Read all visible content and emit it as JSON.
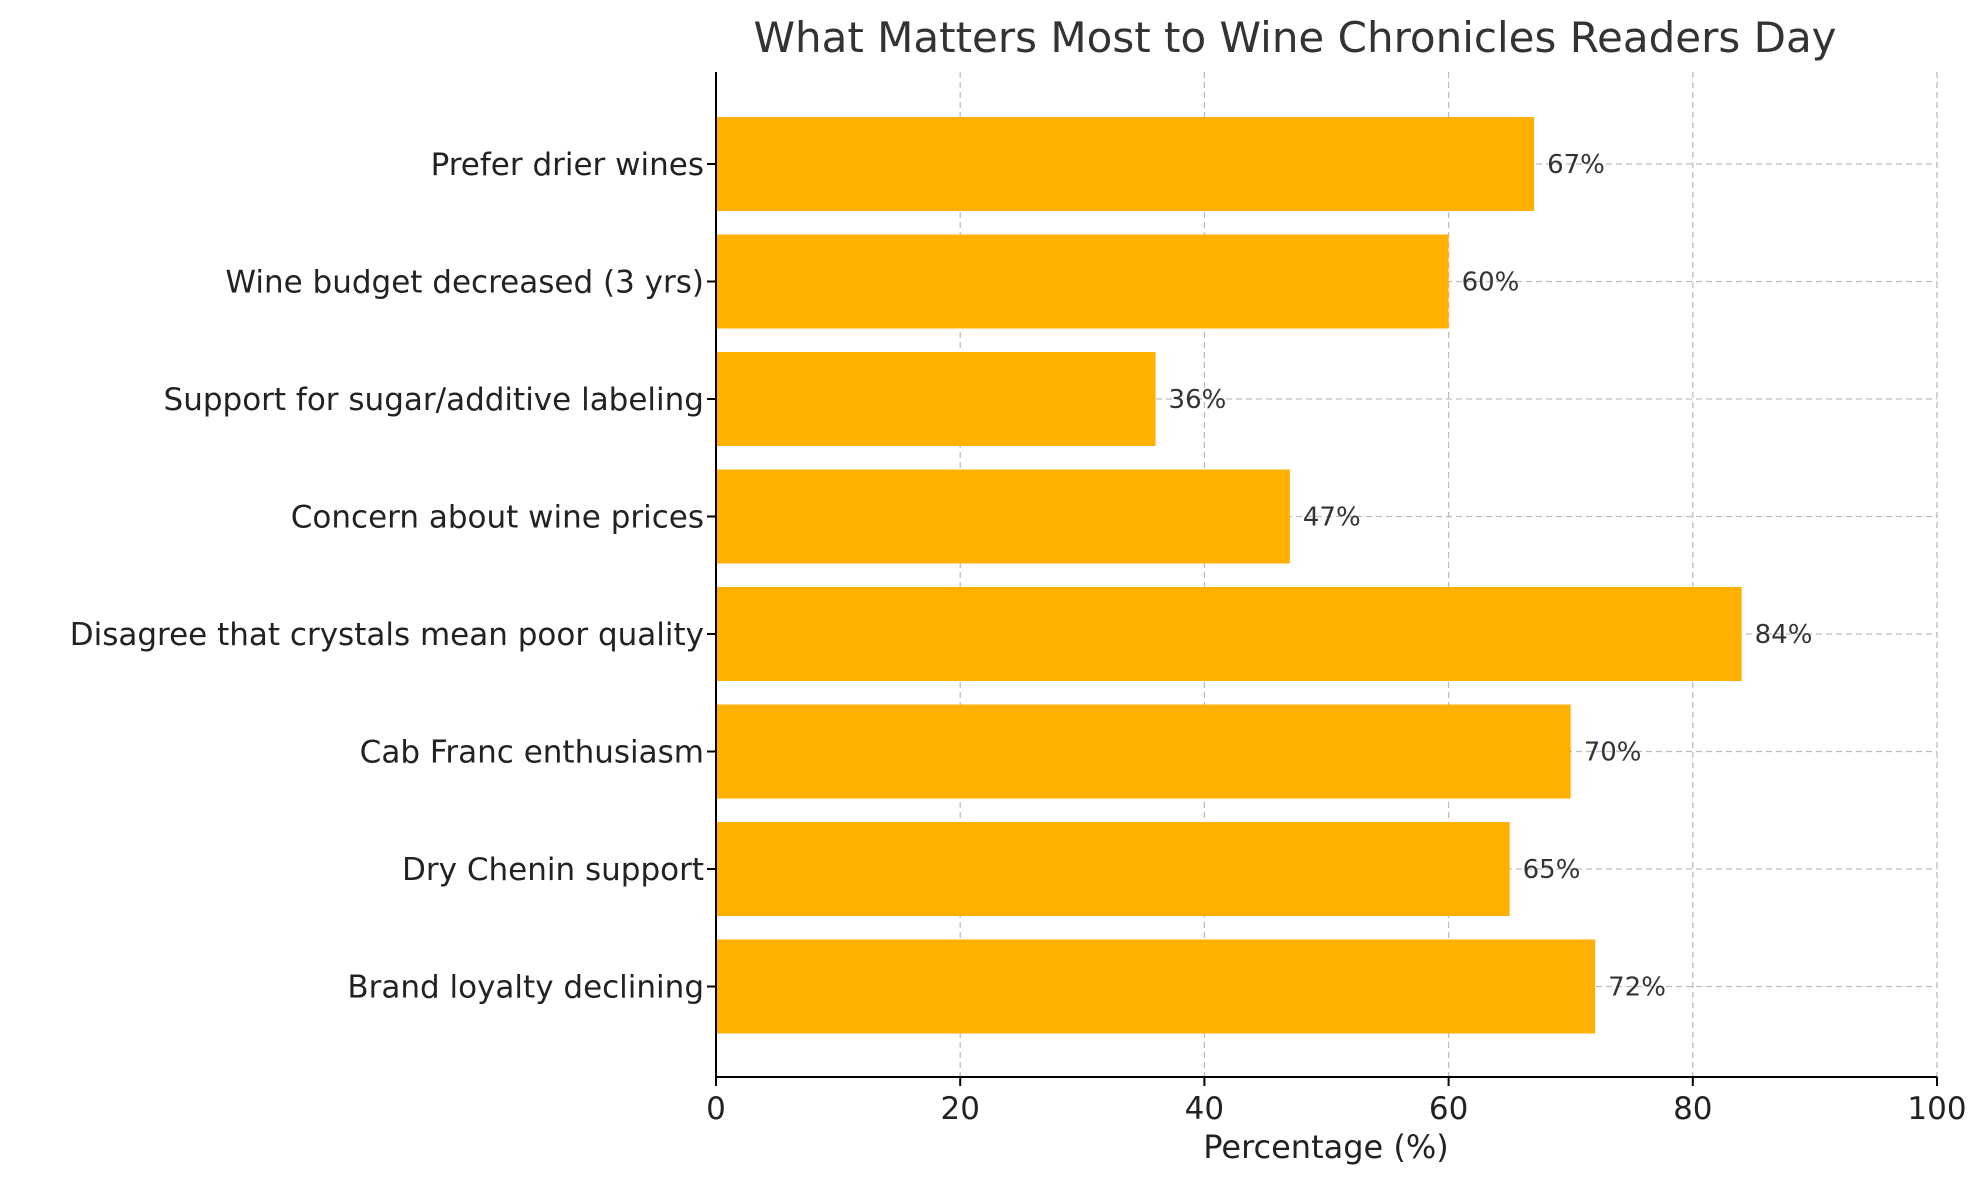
{
  "chart_data": {
    "type": "bar",
    "orientation": "horizontal",
    "title": "What Matters Most to Wine Chronicles Readers Day",
    "xlabel": "Percentage (%)",
    "ylabel": "",
    "xlim": [
      0,
      100
    ],
    "xticks": [
      0,
      20,
      40,
      60,
      80,
      100
    ],
    "grid": true,
    "legend": "none",
    "bar_color": "#FFB000",
    "value_suffix": "%",
    "categories": [
      "Prefer drier wines",
      "Wine budget decreased (3 yrs)",
      "Support for sugar/additive labeling",
      "Concern about wine prices",
      "Disagree that crystals mean poor quality",
      "Cab Franc enthusiasm",
      "Dry Chenin support",
      "Brand loyalty declining"
    ],
    "values": [
      67,
      60,
      36,
      47,
      84,
      70,
      65,
      72
    ]
  }
}
